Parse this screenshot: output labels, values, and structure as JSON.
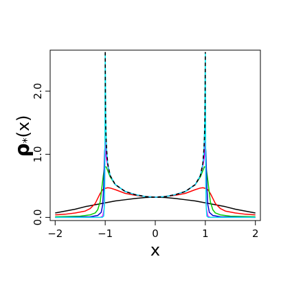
{
  "chart_data": {
    "type": "line",
    "title": "",
    "xlabel": "x",
    "ylabel_main": "ρ",
    "ylabel_sub": "*",
    "ylabel_arg": "(x)",
    "xlim": [
      -2.1,
      2.1
    ],
    "ylim": [
      -0.05,
      2.65
    ],
    "x_ticks": [
      -2,
      -1,
      0,
      1,
      2
    ],
    "x_tick_labels": [
      "−2",
      "−1",
      "0",
      "1",
      "2"
    ],
    "y_ticks": [
      0.0,
      1.0,
      2.0
    ],
    "y_tick_labels": [
      "0.0",
      "1.0",
      "2.0"
    ],
    "grid": false,
    "legend": "none",
    "series": [
      {
        "color": "#000000",
        "style": "solid",
        "points": [
          [
            -2,
            0.07
          ],
          [
            -1.8,
            0.1
          ],
          [
            -1.6,
            0.13
          ],
          [
            -1.4,
            0.17
          ],
          [
            -1.2,
            0.2
          ],
          [
            -1.0,
            0.23
          ],
          [
            -0.8,
            0.26
          ],
          [
            -0.6,
            0.28
          ],
          [
            -0.4,
            0.3
          ],
          [
            -0.2,
            0.315
          ],
          [
            0,
            0.32
          ],
          [
            0.2,
            0.315
          ],
          [
            0.4,
            0.3
          ],
          [
            0.6,
            0.28
          ],
          [
            0.8,
            0.26
          ],
          [
            1.0,
            0.23
          ],
          [
            1.2,
            0.2
          ],
          [
            1.4,
            0.17
          ],
          [
            1.6,
            0.13
          ],
          [
            1.8,
            0.1
          ],
          [
            2,
            0.07
          ]
        ]
      },
      {
        "color": "#ff0000",
        "style": "solid",
        "points": [
          [
            -2,
            0.04
          ],
          [
            -1.8,
            0.05
          ],
          [
            -1.6,
            0.07
          ],
          [
            -1.4,
            0.1
          ],
          [
            -1.3,
            0.14
          ],
          [
            -1.2,
            0.22
          ],
          [
            -1.15,
            0.3
          ],
          [
            -1.1,
            0.38
          ],
          [
            -1.05,
            0.44
          ],
          [
            -1.0,
            0.46
          ],
          [
            -0.95,
            0.47
          ],
          [
            -0.9,
            0.465
          ],
          [
            -0.8,
            0.44
          ],
          [
            -0.6,
            0.38
          ],
          [
            -0.4,
            0.35
          ],
          [
            -0.2,
            0.33
          ],
          [
            0,
            0.32
          ],
          [
            0.2,
            0.33
          ],
          [
            0.4,
            0.35
          ],
          [
            0.6,
            0.38
          ],
          [
            0.8,
            0.44
          ],
          [
            0.9,
            0.465
          ],
          [
            0.95,
            0.47
          ],
          [
            1.0,
            0.46
          ],
          [
            1.05,
            0.44
          ],
          [
            1.1,
            0.38
          ],
          [
            1.15,
            0.3
          ],
          [
            1.2,
            0.22
          ],
          [
            1.3,
            0.14
          ],
          [
            1.4,
            0.1
          ],
          [
            1.6,
            0.07
          ],
          [
            1.8,
            0.05
          ],
          [
            2,
            0.04
          ]
        ]
      },
      {
        "color": "#00cc00",
        "style": "solid",
        "points": [
          [
            -2,
            0.01
          ],
          [
            -1.5,
            0.02
          ],
          [
            -1.3,
            0.04
          ],
          [
            -1.2,
            0.07
          ],
          [
            -1.15,
            0.12
          ],
          [
            -1.1,
            0.25
          ],
          [
            -1.07,
            0.45
          ],
          [
            -1.04,
            0.65
          ],
          [
            -1.02,
            0.76
          ],
          [
            -1.0,
            0.8
          ],
          [
            -0.98,
            0.8
          ],
          [
            -0.95,
            0.74
          ],
          [
            -0.9,
            0.64
          ],
          [
            -0.8,
            0.52
          ],
          [
            -0.6,
            0.41
          ],
          [
            -0.4,
            0.36
          ],
          [
            -0.2,
            0.33
          ],
          [
            0,
            0.32
          ],
          [
            0.2,
            0.33
          ],
          [
            0.4,
            0.36
          ],
          [
            0.6,
            0.41
          ],
          [
            0.8,
            0.52
          ],
          [
            0.9,
            0.64
          ],
          [
            0.95,
            0.74
          ],
          [
            0.98,
            0.8
          ],
          [
            1.0,
            0.8
          ],
          [
            1.02,
            0.76
          ],
          [
            1.04,
            0.65
          ],
          [
            1.07,
            0.45
          ],
          [
            1.1,
            0.25
          ],
          [
            1.15,
            0.12
          ],
          [
            1.2,
            0.07
          ],
          [
            1.3,
            0.04
          ],
          [
            1.5,
            0.02
          ],
          [
            2,
            0.01
          ]
        ]
      },
      {
        "color": "#0000cc",
        "style": "solid",
        "points": [
          [
            -2,
            0.0
          ],
          [
            -1.3,
            0.01
          ],
          [
            -1.15,
            0.03
          ],
          [
            -1.08,
            0.08
          ],
          [
            -1.05,
            0.2
          ],
          [
            -1.03,
            0.5
          ],
          [
            -1.02,
            0.8
          ],
          [
            -1.01,
            1.05
          ],
          [
            -1.0,
            1.15
          ],
          [
            -0.99,
            1.1
          ],
          [
            -0.97,
            0.95
          ],
          [
            -0.95,
            0.82
          ],
          [
            -0.9,
            0.66
          ],
          [
            -0.8,
            0.52
          ],
          [
            -0.6,
            0.41
          ],
          [
            -0.4,
            0.36
          ],
          [
            -0.2,
            0.33
          ],
          [
            0,
            0.32
          ],
          [
            0.2,
            0.33
          ],
          [
            0.4,
            0.36
          ],
          [
            0.6,
            0.41
          ],
          [
            0.8,
            0.52
          ],
          [
            0.9,
            0.66
          ],
          [
            0.95,
            0.82
          ],
          [
            0.97,
            0.95
          ],
          [
            0.99,
            1.1
          ],
          [
            1.0,
            1.15
          ],
          [
            1.01,
            1.05
          ],
          [
            1.02,
            0.8
          ],
          [
            1.03,
            0.5
          ],
          [
            1.05,
            0.2
          ],
          [
            1.08,
            0.08
          ],
          [
            1.15,
            0.03
          ],
          [
            1.3,
            0.01
          ],
          [
            2,
            0.0
          ]
        ]
      },
      {
        "color": "#ff00ff",
        "style": "solid",
        "points": [
          [
            -2,
            0.0
          ],
          [
            -1.1,
            0.0
          ],
          [
            -1.05,
            0.02
          ],
          [
            -1.02,
            0.15
          ],
          [
            -1.01,
            0.5
          ],
          [
            -1.003,
            1.2
          ],
          [
            -0.997,
            1.2
          ],
          [
            -0.99,
            1.0
          ],
          [
            -0.97,
            0.9
          ],
          [
            -0.95,
            0.82
          ],
          [
            -0.9,
            0.66
          ],
          [
            -0.8,
            0.52
          ],
          [
            -0.6,
            0.41
          ],
          [
            -0.4,
            0.36
          ],
          [
            -0.2,
            0.33
          ],
          [
            0,
            0.32
          ],
          [
            0.2,
            0.33
          ],
          [
            0.4,
            0.36
          ],
          [
            0.6,
            0.41
          ],
          [
            0.8,
            0.52
          ],
          [
            0.9,
            0.66
          ],
          [
            0.95,
            0.82
          ],
          [
            0.97,
            0.9
          ],
          [
            0.99,
            1.0
          ],
          [
            0.997,
            1.2
          ],
          [
            1.003,
            1.2
          ],
          [
            1.01,
            0.5
          ],
          [
            1.02,
            0.15
          ],
          [
            1.05,
            0.02
          ],
          [
            1.1,
            0.0
          ],
          [
            2,
            0.0
          ]
        ]
      },
      {
        "color": "#00e5ee",
        "style": "solid",
        "points": [
          [
            -2,
            0.0
          ],
          [
            -1.06,
            0.0
          ],
          [
            -1.03,
            0.02
          ],
          [
            -1.015,
            0.2
          ],
          [
            -1.007,
            0.9
          ],
          [
            -1.003,
            1.8
          ],
          [
            -1.0,
            2.6
          ],
          [
            -0.995,
            2.2
          ],
          [
            -0.99,
            1.6
          ],
          [
            -0.98,
            1.25
          ],
          [
            -0.97,
            1.05
          ],
          [
            -0.95,
            0.85
          ],
          [
            -0.9,
            0.66
          ],
          [
            -0.8,
            0.52
          ],
          [
            -0.6,
            0.41
          ],
          [
            -0.4,
            0.36
          ],
          [
            -0.2,
            0.33
          ],
          [
            0,
            0.32
          ],
          [
            0.2,
            0.33
          ],
          [
            0.4,
            0.36
          ],
          [
            0.6,
            0.41
          ],
          [
            0.8,
            0.52
          ],
          [
            0.9,
            0.66
          ],
          [
            0.95,
            0.85
          ],
          [
            0.97,
            1.05
          ],
          [
            0.98,
            1.25
          ],
          [
            0.99,
            1.6
          ],
          [
            0.995,
            2.2
          ],
          [
            1.0,
            2.6
          ],
          [
            1.003,
            1.8
          ],
          [
            1.007,
            0.9
          ],
          [
            1.015,
            0.2
          ],
          [
            1.03,
            0.02
          ],
          [
            1.06,
            0.0
          ],
          [
            2,
            0.0
          ]
        ]
      },
      {
        "color": "#000000",
        "style": "dashed",
        "points": [
          [
            -0.9995,
            2.62
          ],
          [
            -0.998,
            2.2
          ],
          [
            -0.995,
            1.8
          ],
          [
            -0.99,
            1.45
          ],
          [
            -0.98,
            1.2
          ],
          [
            -0.97,
            1.05
          ],
          [
            -0.95,
            0.85
          ],
          [
            -0.9,
            0.66
          ],
          [
            -0.8,
            0.52
          ],
          [
            -0.6,
            0.41
          ],
          [
            -0.4,
            0.36
          ],
          [
            -0.2,
            0.33
          ],
          [
            0,
            0.32
          ],
          [
            0.2,
            0.33
          ],
          [
            0.4,
            0.36
          ],
          [
            0.6,
            0.41
          ],
          [
            0.8,
            0.52
          ],
          [
            0.9,
            0.66
          ],
          [
            0.95,
            0.85
          ],
          [
            0.97,
            1.05
          ],
          [
            0.98,
            1.2
          ],
          [
            0.99,
            1.45
          ],
          [
            0.995,
            1.8
          ],
          [
            0.998,
            2.2
          ],
          [
            0.9995,
            2.62
          ]
        ]
      }
    ]
  }
}
